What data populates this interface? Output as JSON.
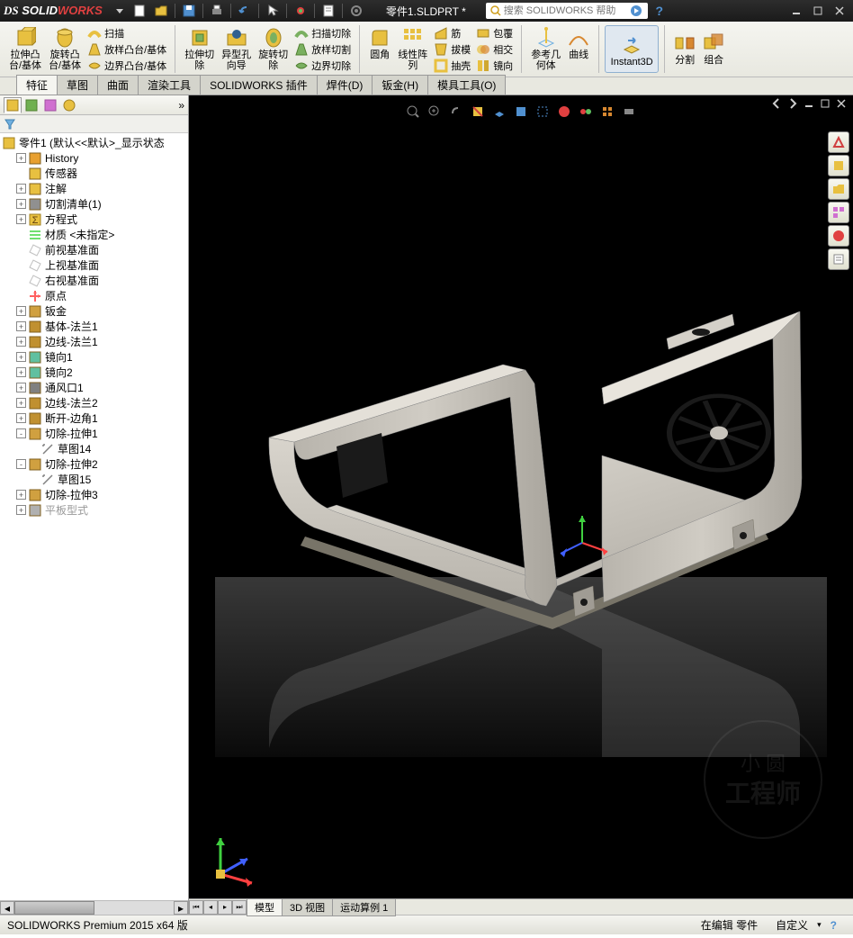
{
  "app": {
    "name": "SOLIDWORKS",
    "doc_title": "零件1.SLDPRT *"
  },
  "search": {
    "placeholder": "搜索 SOLIDWORKS 帮助"
  },
  "ribbon": {
    "groups": [
      {
        "big": [
          {
            "l1": "拉伸凸",
            "l2": "台/基体"
          },
          {
            "l1": "旋转凸",
            "l2": "台/基体"
          }
        ],
        "small": [
          {
            "label": "扫描"
          },
          {
            "label": "放样凸台/基体"
          },
          {
            "label": "边界凸台/基体"
          }
        ]
      },
      {
        "big": [
          {
            "l1": "拉伸切",
            "l2": "除"
          },
          {
            "l1": "异型孔",
            "l2": "向导"
          },
          {
            "l1": "旋转切",
            "l2": "除"
          }
        ],
        "small": [
          {
            "label": "扫描切除"
          },
          {
            "label": "放样切割"
          },
          {
            "label": "边界切除"
          }
        ]
      },
      {
        "big": [
          {
            "l1": "圆角",
            "l2": ""
          },
          {
            "l1": "线性阵",
            "l2": "列"
          }
        ],
        "small": [
          {
            "label": "筋"
          },
          {
            "label": "拔模"
          },
          {
            "label": "抽壳"
          }
        ],
        "small2": [
          {
            "label": "包覆"
          },
          {
            "label": "相交"
          },
          {
            "label": "镜向"
          }
        ]
      },
      {
        "big": [
          {
            "l1": "参考几",
            "l2": "何体"
          },
          {
            "l1": "曲线",
            "l2": ""
          }
        ]
      },
      {
        "instant": "Instant3D"
      },
      {
        "big": [
          {
            "l1": "分割",
            "l2": ""
          },
          {
            "l1": "组合",
            "l2": ""
          }
        ]
      }
    ]
  },
  "tabs": [
    "特征",
    "草图",
    "曲面",
    "渲染工具",
    "SOLIDWORKS 插件",
    "焊件(D)",
    "钣金(H)",
    "模具工具(O)"
  ],
  "active_tab": 0,
  "tree": {
    "root": "零件1  (默认<<默认>_显示状态",
    "items": [
      {
        "d": 1,
        "t": "+",
        "ico": "clock",
        "txt": "History"
      },
      {
        "d": 1,
        "t": "",
        "ico": "sensor",
        "txt": "传感器"
      },
      {
        "d": 1,
        "t": "+",
        "ico": "note",
        "txt": "注解"
      },
      {
        "d": 1,
        "t": "+",
        "ico": "cutlist",
        "txt": "切割清单(1)"
      },
      {
        "d": 1,
        "t": "+",
        "ico": "eq",
        "txt": "方程式"
      },
      {
        "d": 1,
        "t": "",
        "ico": "mat",
        "txt": "材质 <未指定>"
      },
      {
        "d": 1,
        "t": "",
        "ico": "plane",
        "txt": "前视基准面"
      },
      {
        "d": 1,
        "t": "",
        "ico": "plane",
        "txt": "上视基准面"
      },
      {
        "d": 1,
        "t": "",
        "ico": "plane",
        "txt": "右视基准面"
      },
      {
        "d": 1,
        "t": "",
        "ico": "origin",
        "txt": "原点"
      },
      {
        "d": 1,
        "t": "+",
        "ico": "sm",
        "txt": "钣金"
      },
      {
        "d": 1,
        "t": "+",
        "ico": "flange",
        "txt": "基体-法兰1"
      },
      {
        "d": 1,
        "t": "+",
        "ico": "edge",
        "txt": "边线-法兰1"
      },
      {
        "d": 1,
        "t": "+",
        "ico": "mirror",
        "txt": "镜向1"
      },
      {
        "d": 1,
        "t": "+",
        "ico": "mirror",
        "txt": "镜向2"
      },
      {
        "d": 1,
        "t": "+",
        "ico": "vent",
        "txt": "通风口1"
      },
      {
        "d": 1,
        "t": "+",
        "ico": "edge",
        "txt": "边线-法兰2"
      },
      {
        "d": 1,
        "t": "+",
        "ico": "break",
        "txt": "断开-边角1"
      },
      {
        "d": 1,
        "t": "-",
        "ico": "cut",
        "txt": "切除-拉伸1"
      },
      {
        "d": 2,
        "t": "",
        "ico": "sketch",
        "txt": "草图14"
      },
      {
        "d": 1,
        "t": "-",
        "ico": "cut",
        "txt": "切除-拉伸2"
      },
      {
        "d": 2,
        "t": "",
        "ico": "sketch",
        "txt": "草图15"
      },
      {
        "d": 1,
        "t": "+",
        "ico": "cut",
        "txt": "切除-拉伸3"
      },
      {
        "d": 1,
        "t": "+",
        "ico": "flat",
        "txt": "平板型式",
        "grey": true
      }
    ]
  },
  "bottom_tabs": [
    "模型",
    "3D 视图",
    "运动算例 1"
  ],
  "active_bottom_tab": 0,
  "status": {
    "left": "SOLIDWORKS Premium 2015 x64 版",
    "edit": "在编辑 零件",
    "custom": "自定义"
  },
  "colors": {
    "cmd_yellow": "#e8c040",
    "cmd_orange": "#d88830",
    "cmd_blue": "#5090d0",
    "cmd_green": "#70b050",
    "metal1": "#d0cec8",
    "metal2": "#b8b4ac",
    "metal3": "#9c9890",
    "dark": "#2c2c2c",
    "axis_x": "#ff4040",
    "axis_y": "#40ff40",
    "axis_z": "#4060ff"
  },
  "icons": {
    "clock": "#e8a030",
    "sensor": "#e8c040",
    "note": "#e8c040",
    "cutlist": "#909090",
    "eq": "#e8c040",
    "mat": "#70e070",
    "plane": "#c0c0c0",
    "origin": "#ff6060",
    "sm": "#d0a040",
    "flange": "#c09030",
    "edge": "#c09030",
    "mirror": "#60c0a0",
    "vent": "#808080",
    "break": "#c09030",
    "cut": "#d0a040",
    "sketch": "#808080",
    "flat": "#b0b0b0"
  }
}
